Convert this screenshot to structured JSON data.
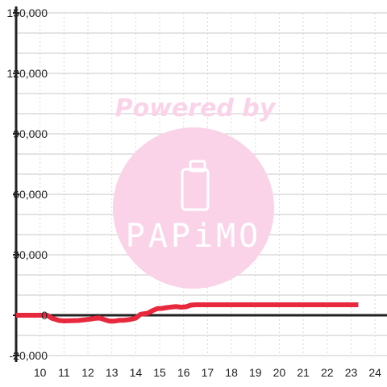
{
  "chart_data": {
    "type": "line",
    "title": "",
    "xlabel": "",
    "ylabel": "",
    "xlim": [
      9,
      24.5
    ],
    "ylim": [
      -20000,
      150000
    ],
    "x_ticks": [
      10,
      11,
      12,
      13,
      14,
      15,
      16,
      17,
      18,
      19,
      20,
      21,
      22,
      23,
      24
    ],
    "x_tick_labels": [
      "10",
      "11",
      "12",
      "13",
      "14",
      "15",
      "16",
      "17",
      "18",
      "19",
      "20",
      "21",
      "22",
      "23",
      "24"
    ],
    "y_ticks": [
      -20000,
      0,
      30000,
      60000,
      90000,
      120000,
      150000
    ],
    "y_tick_labels": [
      "-20,000",
      "0",
      "30,000",
      "60,000",
      "90,000",
      "120,000",
      "150,000"
    ],
    "grid": true,
    "series": [
      {
        "color": "#e8283c",
        "x": [
          9.0,
          9.3,
          9.6,
          9.9,
          10.1,
          10.3,
          10.5,
          10.8,
          11.0,
          11.3,
          11.6,
          11.9,
          12.1,
          12.3,
          12.5,
          12.7,
          12.9,
          13.1,
          13.3,
          13.5,
          13.8,
          14.0,
          14.2,
          14.5,
          14.7,
          14.9,
          15.1,
          15.3,
          15.5,
          15.7,
          15.9,
          16.1,
          16.3,
          16.5,
          17.0,
          18.0,
          19.0,
          20.0,
          21.0,
          22.0,
          23.0,
          23.3
        ],
        "values": [
          0,
          0,
          0,
          0,
          0,
          0,
          -1500,
          -2600,
          -2800,
          -2700,
          -2600,
          -2200,
          -1900,
          -1500,
          -1400,
          -2200,
          -2900,
          -2900,
          -2500,
          -2500,
          -2000,
          -1400,
          500,
          1000,
          2300,
          3300,
          3400,
          3800,
          4100,
          4300,
          4000,
          4200,
          5000,
          5200,
          5200,
          5200,
          5200,
          5200,
          5200,
          5200,
          5200,
          5200
        ]
      }
    ]
  },
  "watermark": {
    "line1": "Powered by",
    "brand": "PAPiMO",
    "color": "#fbd3e9",
    "icon": "phone-icon"
  },
  "colors": {
    "axis": "#222222",
    "grid_major": "#c8c8c8",
    "grid_minor": "#d9d9d9",
    "background": "#ffffff"
  }
}
